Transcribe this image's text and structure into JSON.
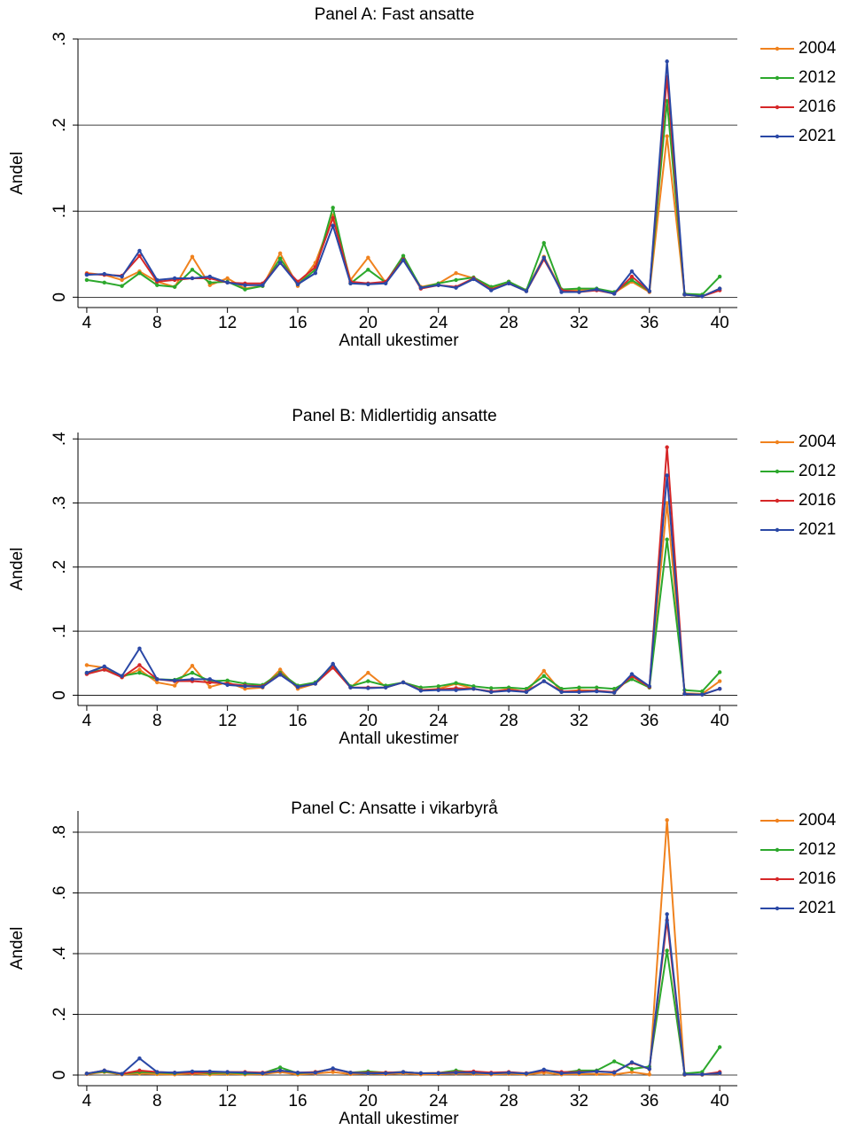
{
  "chart_data": [
    {
      "type": "line",
      "title": "Panel A: Fast ansatte",
      "x_label": "Antall ukestimer",
      "y_label": "Andel",
      "x": [
        4,
        5,
        6,
        7,
        8,
        9,
        10,
        11,
        12,
        13,
        14,
        15,
        16,
        17,
        18,
        19,
        20,
        21,
        22,
        23,
        24,
        25,
        26,
        27,
        28,
        29,
        30,
        31,
        32,
        33,
        34,
        35,
        36,
        37,
        38,
        39,
        40
      ],
      "xlim": [
        3.5,
        41
      ],
      "xticks": [
        4,
        8,
        12,
        16,
        20,
        24,
        28,
        32,
        36,
        40
      ],
      "ylim": [
        -0.012,
        0.3
      ],
      "yticks": [
        0,
        {
          "value": 0.1,
          "label": ".1"
        },
        {
          "value": 0.2,
          "label": ".2"
        },
        {
          "value": 0.3,
          "label": ".3"
        }
      ],
      "grid": true,
      "legend": "right",
      "series": [
        {
          "name": "2004",
          "color": "#f0821e",
          "values": [
            0.028,
            0.026,
            0.02,
            0.03,
            0.018,
            0.012,
            0.047,
            0.014,
            0.022,
            0.01,
            0.013,
            0.051,
            0.013,
            0.04,
            0.095,
            0.02,
            0.046,
            0.017,
            0.045,
            0.012,
            0.016,
            0.028,
            0.022,
            0.01,
            0.018,
            0.008,
            0.047,
            0.008,
            0.008,
            0.009,
            0.005,
            0.018,
            0.006,
            0.187,
            0.003,
            0.001,
            0.01
          ]
        },
        {
          "name": "2012",
          "color": "#2ca82c",
          "values": [
            0.02,
            0.017,
            0.013,
            0.028,
            0.014,
            0.012,
            0.032,
            0.017,
            0.018,
            0.009,
            0.013,
            0.045,
            0.015,
            0.032,
            0.104,
            0.016,
            0.032,
            0.017,
            0.048,
            0.011,
            0.016,
            0.02,
            0.023,
            0.012,
            0.018,
            0.008,
            0.063,
            0.009,
            0.01,
            0.01,
            0.006,
            0.02,
            0.007,
            0.228,
            0.004,
            0.003,
            0.024
          ]
        },
        {
          "name": "2016",
          "color": "#d62728",
          "values": [
            0.027,
            0.026,
            0.025,
            0.048,
            0.018,
            0.02,
            0.022,
            0.022,
            0.017,
            0.016,
            0.016,
            0.04,
            0.018,
            0.035,
            0.092,
            0.018,
            0.016,
            0.018,
            0.044,
            0.01,
            0.014,
            0.012,
            0.022,
            0.009,
            0.016,
            0.007,
            0.044,
            0.008,
            0.006,
            0.008,
            0.004,
            0.024,
            0.007,
            0.256,
            0.003,
            0.001,
            0.008
          ]
        },
        {
          "name": "2021",
          "color": "#2a48a6",
          "values": [
            0.026,
            0.027,
            0.024,
            0.054,
            0.02,
            0.022,
            0.022,
            0.024,
            0.017,
            0.014,
            0.014,
            0.04,
            0.015,
            0.028,
            0.083,
            0.016,
            0.015,
            0.016,
            0.043,
            0.011,
            0.014,
            0.011,
            0.021,
            0.008,
            0.016,
            0.007,
            0.046,
            0.006,
            0.006,
            0.009,
            0.004,
            0.03,
            0.007,
            0.274,
            0.003,
            0.001,
            0.01
          ]
        }
      ]
    },
    {
      "type": "line",
      "title": "Panel B: Midlertidig ansatte",
      "x_label": "Antall ukestimer",
      "y_label": "Andel",
      "x": [
        4,
        5,
        6,
        7,
        8,
        9,
        10,
        11,
        12,
        13,
        14,
        15,
        16,
        17,
        18,
        19,
        20,
        21,
        22,
        23,
        24,
        25,
        26,
        27,
        28,
        29,
        30,
        31,
        32,
        33,
        34,
        35,
        36,
        37,
        38,
        39,
        40
      ],
      "xlim": [
        3.5,
        41
      ],
      "xticks": [
        4,
        8,
        12,
        16,
        20,
        24,
        28,
        32,
        36,
        40
      ],
      "ylim": [
        -0.016,
        0.41
      ],
      "yticks": [
        0,
        {
          "value": 0.1,
          "label": ".1"
        },
        {
          "value": 0.2,
          "label": ".2"
        },
        {
          "value": 0.3,
          "label": ".3"
        },
        {
          "value": 0.4,
          "label": ".4"
        }
      ],
      "grid": true,
      "legend": "right",
      "series": [
        {
          "name": "2004",
          "color": "#f0821e",
          "values": [
            0.047,
            0.043,
            0.028,
            0.04,
            0.02,
            0.015,
            0.046,
            0.013,
            0.02,
            0.01,
            0.012,
            0.04,
            0.01,
            0.018,
            0.048,
            0.012,
            0.035,
            0.013,
            0.02,
            0.008,
            0.01,
            0.018,
            0.01,
            0.005,
            0.01,
            0.005,
            0.038,
            0.005,
            0.008,
            0.007,
            0.004,
            0.03,
            0.012,
            0.3,
            0.003,
            0.002,
            0.022
          ]
        },
        {
          "name": "2012",
          "color": "#2ca82c",
          "values": [
            0.035,
            0.04,
            0.03,
            0.035,
            0.025,
            0.024,
            0.035,
            0.022,
            0.023,
            0.018,
            0.016,
            0.035,
            0.015,
            0.02,
            0.047,
            0.014,
            0.022,
            0.015,
            0.02,
            0.012,
            0.014,
            0.019,
            0.014,
            0.011,
            0.012,
            0.01,
            0.03,
            0.01,
            0.012,
            0.012,
            0.01,
            0.025,
            0.012,
            0.243,
            0.008,
            0.006,
            0.036
          ]
        },
        {
          "name": "2016",
          "color": "#d62728",
          "values": [
            0.033,
            0.04,
            0.028,
            0.047,
            0.025,
            0.022,
            0.022,
            0.02,
            0.018,
            0.015,
            0.014,
            0.033,
            0.013,
            0.018,
            0.043,
            0.012,
            0.012,
            0.012,
            0.02,
            0.008,
            0.009,
            0.011,
            0.01,
            0.006,
            0.008,
            0.006,
            0.022,
            0.006,
            0.006,
            0.007,
            0.005,
            0.03,
            0.013,
            0.387,
            0.002,
            0.001,
            0.01
          ]
        },
        {
          "name": "2021",
          "color": "#2a48a6",
          "values": [
            0.035,
            0.045,
            0.03,
            0.073,
            0.025,
            0.023,
            0.025,
            0.025,
            0.016,
            0.014,
            0.013,
            0.032,
            0.013,
            0.018,
            0.049,
            0.012,
            0.011,
            0.012,
            0.02,
            0.007,
            0.008,
            0.008,
            0.01,
            0.005,
            0.007,
            0.005,
            0.022,
            0.005,
            0.005,
            0.006,
            0.004,
            0.033,
            0.014,
            0.343,
            0.002,
            0.001,
            0.01
          ]
        }
      ]
    },
    {
      "type": "line",
      "title": "Panel C: Ansatte i vikarbyrå",
      "x_label": "Antall ukestimer",
      "y_label": "Andel",
      "x": [
        4,
        5,
        6,
        7,
        8,
        9,
        10,
        11,
        12,
        13,
        14,
        15,
        16,
        17,
        18,
        19,
        20,
        21,
        22,
        23,
        24,
        25,
        26,
        27,
        28,
        29,
        30,
        31,
        32,
        33,
        34,
        35,
        36,
        37,
        38,
        39,
        40
      ],
      "xlim": [
        3.5,
        41
      ],
      "xticks": [
        4,
        8,
        12,
        16,
        20,
        24,
        28,
        32,
        36,
        40
      ],
      "ylim": [
        -0.035,
        0.87
      ],
      "yticks": [
        0,
        {
          "value": 0.2,
          "label": ".2"
        },
        {
          "value": 0.4,
          "label": ".4"
        },
        {
          "value": 0.6,
          "label": ".6"
        },
        {
          "value": 0.8,
          "label": ".8"
        }
      ],
      "grid": true,
      "legend": "right",
      "series": [
        {
          "name": "2004",
          "color": "#f0821e",
          "values": [
            0.003,
            0.01,
            0.002,
            0.005,
            0.003,
            0.002,
            0.005,
            0.002,
            0.004,
            0.002,
            0.003,
            0.01,
            0.002,
            0.005,
            0.01,
            0.003,
            0.005,
            0.003,
            0.006,
            0.002,
            0.003,
            0.005,
            0.004,
            0.002,
            0.004,
            0.002,
            0.008,
            0.002,
            0.003,
            0.004,
            0.002,
            0.01,
            0.002,
            0.84,
            0.001,
            0.001,
            0.005
          ]
        },
        {
          "name": "2012",
          "color": "#2ca82c",
          "values": [
            0.005,
            0.012,
            0.004,
            0.01,
            0.008,
            0.006,
            0.01,
            0.006,
            0.008,
            0.005,
            0.006,
            0.025,
            0.006,
            0.01,
            0.02,
            0.008,
            0.012,
            0.008,
            0.01,
            0.006,
            0.007,
            0.015,
            0.008,
            0.006,
            0.008,
            0.005,
            0.015,
            0.008,
            0.015,
            0.015,
            0.045,
            0.02,
            0.028,
            0.41,
            0.005,
            0.01,
            0.092
          ]
        },
        {
          "name": "2016",
          "color": "#d62728",
          "values": [
            0.005,
            0.015,
            0.004,
            0.015,
            0.01,
            0.008,
            0.008,
            0.01,
            0.01,
            0.01,
            0.008,
            0.015,
            0.008,
            0.01,
            0.02,
            0.008,
            0.008,
            0.008,
            0.01,
            0.006,
            0.007,
            0.01,
            0.012,
            0.008,
            0.01,
            0.006,
            0.015,
            0.01,
            0.01,
            0.012,
            0.01,
            0.04,
            0.02,
            0.51,
            0.002,
            0.002,
            0.01
          ]
        },
        {
          "name": "2021",
          "color": "#2a48a6",
          "values": [
            0.005,
            0.015,
            0.004,
            0.055,
            0.01,
            0.008,
            0.012,
            0.012,
            0.01,
            0.008,
            0.006,
            0.015,
            0.008,
            0.008,
            0.022,
            0.008,
            0.006,
            0.006,
            0.01,
            0.006,
            0.006,
            0.008,
            0.008,
            0.005,
            0.008,
            0.005,
            0.018,
            0.006,
            0.008,
            0.012,
            0.008,
            0.042,
            0.02,
            0.53,
            0.002,
            0.002,
            0.006
          ]
        }
      ]
    }
  ]
}
